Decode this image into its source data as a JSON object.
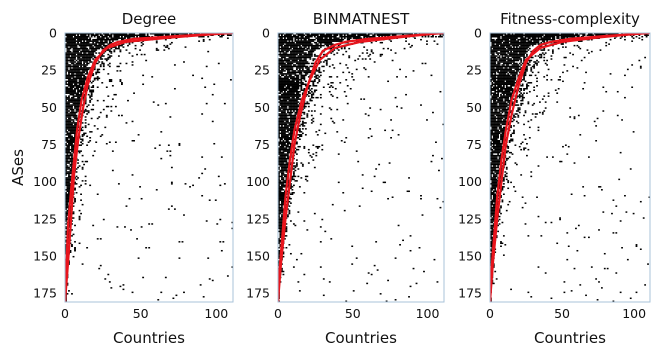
{
  "chart_data": [
    {
      "type": "scatter",
      "title": "Degree",
      "xlabel": "Countries",
      "ylabel": "ASes",
      "xlim": [
        0,
        111
      ],
      "ylim": [
        181,
        0
      ],
      "xticks": [
        "0",
        "50",
        "100"
      ],
      "yticks": [
        "0",
        "25",
        "50",
        "75",
        "100",
        "125",
        "150",
        "175"
      ],
      "point_color": "#000000",
      "curve_color": "#e8141c",
      "curves": [
        {
          "x": [
            111,
            75,
            45,
            35,
            30,
            25,
            20,
            15,
            12,
            9,
            6,
            4,
            2,
            0
          ],
          "y": [
            0,
            2,
            4,
            6,
            8,
            12,
            20,
            35,
            50,
            70,
            95,
            125,
            155,
            181
          ]
        },
        {
          "x": [
            108,
            70,
            40,
            28,
            20,
            15,
            11,
            8,
            6,
            4,
            2,
            1,
            0
          ],
          "y": [
            0,
            3,
            6,
            10,
            18,
            30,
            45,
            65,
            85,
            105,
            130,
            155,
            181
          ]
        }
      ]
    },
    {
      "type": "scatter",
      "title": "BINMATNEST",
      "xlabel": "Countries",
      "ylabel": "",
      "xlim": [
        0,
        111
      ],
      "ylim": [
        181,
        0
      ],
      "xticks": [
        "0",
        "50",
        "100"
      ],
      "yticks": [
        "0",
        "25",
        "50",
        "75",
        "100",
        "125",
        "150",
        "175"
      ],
      "point_color": "#000000",
      "curve_color": "#e8141c",
      "curves": [
        {
          "x": [
            111,
            85,
            60,
            45,
            38,
            30,
            25,
            20,
            15,
            11,
            8,
            5,
            2,
            0
          ],
          "y": [
            0,
            2,
            4,
            6,
            8,
            12,
            20,
            35,
            55,
            75,
            100,
            125,
            155,
            181
          ]
        },
        {
          "x": [
            108,
            80,
            55,
            38,
            28,
            22,
            16,
            11,
            8,
            5,
            3,
            1,
            0
          ],
          "y": [
            0,
            3,
            6,
            10,
            18,
            30,
            45,
            65,
            85,
            110,
            135,
            160,
            181
          ]
        }
      ]
    },
    {
      "type": "scatter",
      "title": "Fitness-complexity",
      "xlabel": "Countries",
      "ylabel": "",
      "xlim": [
        0,
        111
      ],
      "ylim": [
        181,
        0
      ],
      "xticks": [
        "0",
        "50",
        "100"
      ],
      "yticks": [
        "0",
        "25",
        "50",
        "75",
        "100",
        "125",
        "150",
        "175"
      ],
      "point_color": "#000000",
      "curve_color": "#e8141c",
      "curves": [
        {
          "x": [
            111,
            80,
            55,
            42,
            35,
            30,
            25,
            20,
            15,
            11,
            8,
            5,
            2,
            0
          ],
          "y": [
            0,
            2,
            4,
            6,
            8,
            12,
            20,
            35,
            55,
            75,
            100,
            125,
            155,
            181
          ]
        },
        {
          "x": [
            108,
            75,
            50,
            35,
            25,
            20,
            15,
            11,
            8,
            5,
            3,
            1,
            0
          ],
          "y": [
            0,
            3,
            6,
            10,
            18,
            30,
            45,
            65,
            85,
            110,
            135,
            160,
            181
          ]
        }
      ]
    }
  ]
}
